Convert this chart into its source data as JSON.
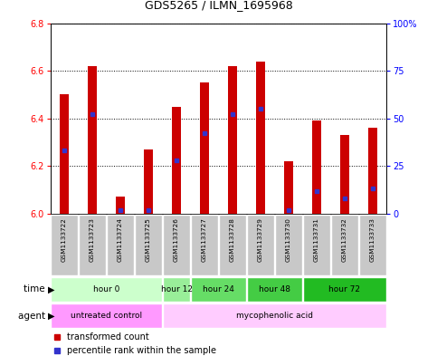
{
  "title": "GDS5265 / ILMN_1695968",
  "samples": [
    "GSM1133722",
    "GSM1133723",
    "GSM1133724",
    "GSM1133725",
    "GSM1133726",
    "GSM1133727",
    "GSM1133728",
    "GSM1133729",
    "GSM1133730",
    "GSM1133731",
    "GSM1133732",
    "GSM1133733"
  ],
  "transformed_count": [
    6.5,
    6.62,
    6.07,
    6.27,
    6.45,
    6.55,
    6.62,
    6.64,
    6.22,
    6.39,
    6.33,
    6.36
  ],
  "percentile_rank": [
    33,
    52,
    2,
    2,
    28,
    42,
    52,
    55,
    2,
    12,
    8,
    13
  ],
  "ylim_left": [
    6.0,
    6.8
  ],
  "ylim_right": [
    0,
    100
  ],
  "yticks_left": [
    6.0,
    6.2,
    6.4,
    6.6,
    6.8
  ],
  "yticks_right": [
    0,
    25,
    50,
    75,
    100
  ],
  "ytick_labels_right": [
    "0",
    "25",
    "50",
    "75",
    "100%"
  ],
  "bar_color": "#CC0000",
  "dot_color": "#3333CC",
  "background_color": "#FFFFFF",
  "plot_bg": "#FFFFFF",
  "sample_cell_color": "#C8C8C8",
  "time_groups": [
    {
      "label": "hour 0",
      "start": 0,
      "end": 3,
      "color": "#CCFFCC"
    },
    {
      "label": "hour 12",
      "start": 4,
      "end": 4,
      "color": "#99EE99"
    },
    {
      "label": "hour 24",
      "start": 5,
      "end": 6,
      "color": "#66DD66"
    },
    {
      "label": "hour 48",
      "start": 7,
      "end": 8,
      "color": "#44CC44"
    },
    {
      "label": "hour 72",
      "start": 9,
      "end": 11,
      "color": "#22BB22"
    }
  ],
  "agent_groups": [
    {
      "label": "untreated control",
      "start": 0,
      "end": 3,
      "color": "#FF99FF"
    },
    {
      "label": "mycophenolic acid",
      "start": 4,
      "end": 11,
      "color": "#FFCCFF"
    }
  ],
  "legend_bar_label": "transformed count",
  "legend_dot_label": "percentile rank within the sample",
  "row_label_time": "time",
  "row_label_agent": "agent",
  "base_value": 6.0,
  "bar_width": 0.35
}
